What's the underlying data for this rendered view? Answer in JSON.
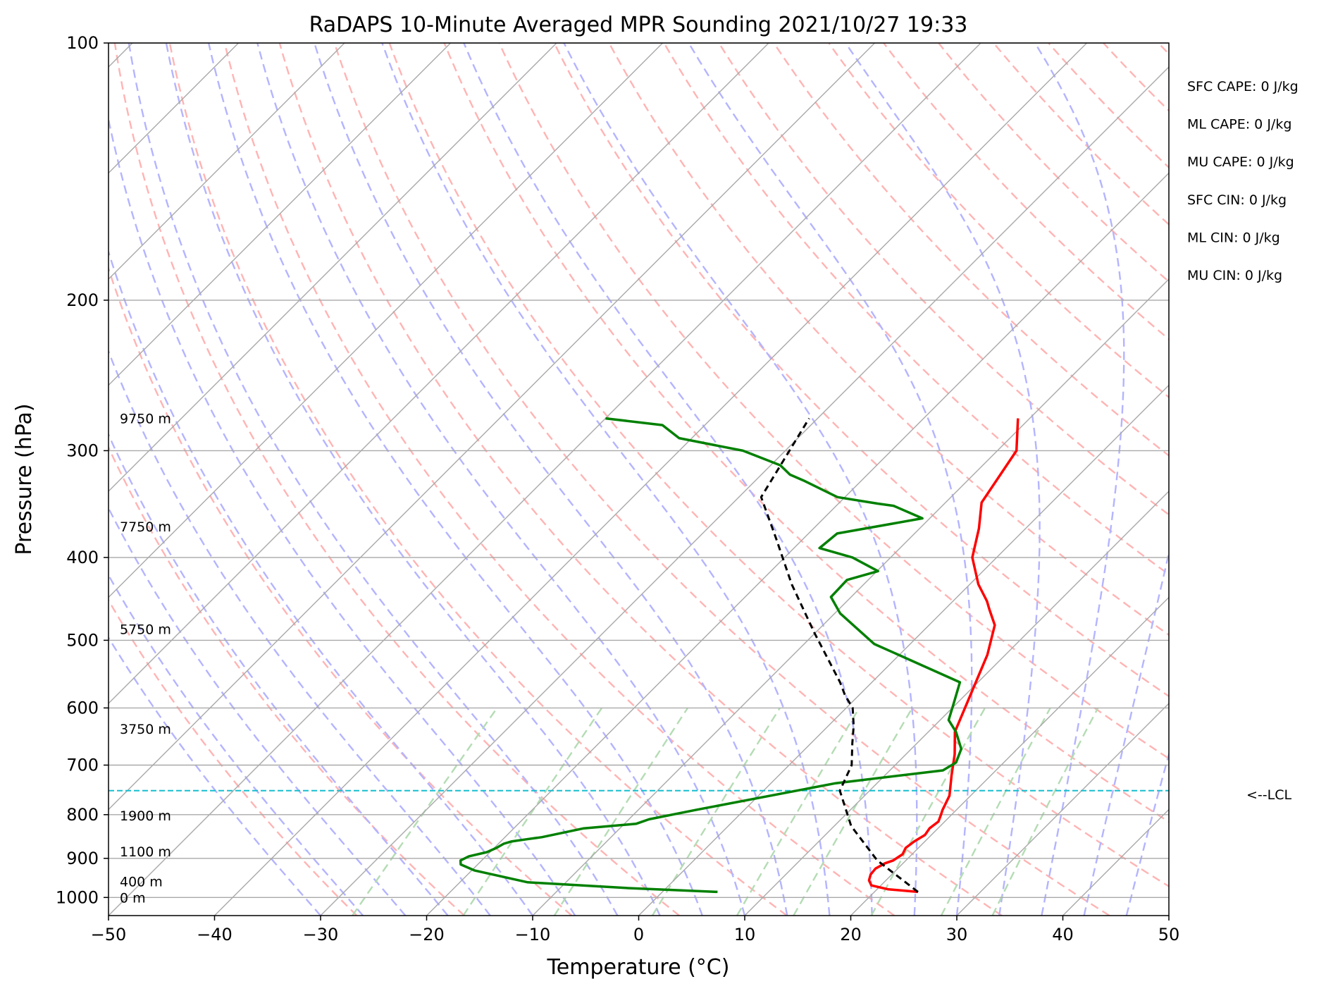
{
  "chart_data": {
    "type": "line",
    "title": "RaDAPS 10-Minute Averaged MPR Sounding 2021/10/27 19:33",
    "xlabel": "Temperature (°C)",
    "ylabel": "Pressure (hPa)",
    "xlim": [
      -50,
      50
    ],
    "ylim": [
      1050,
      100
    ],
    "y_scale": "log",
    "skew": "45 deg",
    "grid": true,
    "x_ticks": [
      "−50",
      "−40",
      "−30",
      "−20",
      "−10",
      "0",
      "10",
      "20",
      "30",
      "40",
      "50"
    ],
    "x_tick_values": [
      -50,
      -40,
      -30,
      -20,
      -10,
      0,
      10,
      20,
      30,
      40,
      50
    ],
    "y_ticks": [
      "100",
      "200",
      "300",
      "400",
      "500",
      "600",
      "700",
      "800",
      "900",
      "1000"
    ],
    "y_tick_values": [
      100,
      200,
      300,
      400,
      500,
      600,
      700,
      800,
      900,
      1000
    ],
    "colors": {
      "temperature": "#ff0000",
      "dewpoint": "#008000",
      "parcel": "#000000",
      "lcl": "#17becf",
      "isotherm": "#a9a9a9",
      "dry_adiabat": "#ffb4b4",
      "moist_adiabat": "#b4b4ff",
      "mixing_ratio": "#b4dcb4"
    },
    "series": [
      {
        "name": "temperature",
        "color": "#ff0000",
        "x": [
          24.1,
          21.0,
          19.1,
          18.4,
          18.0,
          17.9,
          18.3,
          18.8,
          19.1,
          18.8,
          19.0,
          19.4,
          19.2,
          19.4,
          19.0,
          18.7,
          18.0,
          16.3,
          14.6,
          12.5,
          8.3,
          6.2,
          4.2,
          3.2,
          0.8,
          -2.3,
          -4.4,
          -6.6,
          -8.2,
          -11.1
        ],
        "y": [
          985,
          978,
          968,
          955,
          940,
          925,
          912,
          905,
          890,
          875,
          860,
          845,
          830,
          815,
          800,
          790,
          760,
          720,
          680,
          640,
          520,
          480,
          460,
          450,
          430,
          400,
          370,
          345,
          300,
          275
        ]
      },
      {
        "name": "dewpoint",
        "color": "#008000",
        "x": [
          5.2,
          -3.6,
          -13.6,
          -19.7,
          -21.6,
          -22.0,
          -21.6,
          -20.3,
          -19.8,
          -19.5,
          -19.0,
          -17.8,
          -16.5,
          -13.4,
          -8.9,
          -8.1,
          -4.6,
          6.1,
          15.0,
          15.5,
          14.7,
          12.6,
          10.8,
          9.8,
          8.3,
          -3.4,
          -9.5,
          -11.9,
          -12.0,
          -9.9,
          -13.6,
          -17.6,
          -17.3,
          -10.7,
          -14.6,
          -16.3,
          -20.7,
          -25.5,
          -27.3,
          -29.1,
          -34.0,
          -41.2,
          -44.0,
          -50.0
        ],
        "y": [
          985,
          975,
          960,
          930,
          915,
          905,
          895,
          885,
          875,
          865,
          860,
          855,
          850,
          830,
          820,
          810,
          790,
          735,
          710,
          695,
          670,
          640,
          620,
          595,
          560,
          505,
          465,
          445,
          425,
          415,
          400,
          390,
          375,
          360,
          348,
          346,
          340,
          325,
          320,
          312,
          300,
          290,
          280,
          275
        ]
      },
      {
        "name": "parcel",
        "color": "#000000",
        "style": "dashed",
        "x": [
          24.1,
          17.3,
          11.6,
          7.2,
          5.9,
          3.9,
          2.4,
          0.6,
          -1.3,
          -3.0,
          -10.1,
          -16.8,
          -22.6,
          -27.9,
          -30.8
        ],
        "y": [
          985,
          905,
          825,
          750,
          700,
          660,
          630,
          600,
          580,
          560,
          490,
          430,
          380,
          340,
          275
        ]
      }
    ],
    "lcl_pressure": 750,
    "height_labels": [
      {
        "text": "9750 m",
        "p": 275
      },
      {
        "text": "7750 m",
        "p": 368
      },
      {
        "text": "5750 m",
        "p": 485
      },
      {
        "text": "3750 m",
        "p": 635
      },
      {
        "text": "1900 m",
        "p": 802
      },
      {
        "text": "1100 m",
        "p": 883
      },
      {
        "text": "400 m",
        "p": 958
      },
      {
        "text": "0 m",
        "p": 1000
      }
    ]
  },
  "indices": [
    "SFC CAPE: 0 J/kg",
    "ML CAPE: 0 J/kg",
    "MU CAPE: 0 J/kg",
    "SFC CIN: 0 J/kg",
    "ML CIN: 0 J/kg",
    "MU CIN: 0 J/kg"
  ],
  "lcl_label": "<--LCL"
}
